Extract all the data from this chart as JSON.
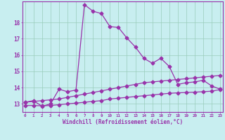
{
  "x": [
    0,
    1,
    2,
    3,
    4,
    5,
    6,
    7,
    8,
    9,
    10,
    11,
    12,
    13,
    14,
    15,
    16,
    17,
    18,
    19,
    20,
    21,
    22,
    23
  ],
  "main_line": [
    13.1,
    13.2,
    12.85,
    13.0,
    13.9,
    13.75,
    13.85,
    19.1,
    18.7,
    18.55,
    17.75,
    17.7,
    17.05,
    16.5,
    15.8,
    15.5,
    15.8,
    15.3,
    14.2,
    14.3,
    14.35,
    14.45,
    14.1,
    13.9
  ],
  "upper_line": [
    13.1,
    null,
    null,
    null,
    null,
    null,
    null,
    null,
    null,
    null,
    null,
    null,
    null,
    null,
    null,
    null,
    null,
    null,
    null,
    null,
    null,
    null,
    null,
    14.75
  ],
  "lower_line": [
    12.9,
    null,
    null,
    null,
    null,
    null,
    null,
    null,
    null,
    null,
    null,
    null,
    null,
    null,
    null,
    null,
    null,
    null,
    null,
    null,
    null,
    null,
    null,
    13.88
  ],
  "upper_line_full": [
    13.1,
    13.15,
    13.2,
    13.25,
    13.3,
    13.4,
    13.5,
    13.6,
    13.7,
    13.8,
    13.9,
    14.0,
    14.1,
    14.2,
    14.3,
    14.35,
    14.4,
    14.45,
    14.5,
    14.55,
    14.6,
    14.65,
    14.7,
    14.75
  ],
  "lower_line_full": [
    12.9,
    12.9,
    12.88,
    12.9,
    12.95,
    13.0,
    13.05,
    13.1,
    13.15,
    13.2,
    13.3,
    13.35,
    13.4,
    13.45,
    13.5,
    13.55,
    13.6,
    13.65,
    13.68,
    13.7,
    13.72,
    13.75,
    13.78,
    13.88
  ],
  "line_color": "#9933aa",
  "bg_color": "#c8eef0",
  "grid_color": "#99ccbb",
  "ylabel_values": [
    13,
    14,
    15,
    16,
    17,
    18
  ],
  "ylim": [
    12.5,
    19.3
  ],
  "xlim": [
    -0.3,
    23.3
  ],
  "xlabel": "Windchill (Refroidissement éolien,°C)",
  "marker": "D",
  "marker_size": 2.5,
  "linewidth": 0.9
}
